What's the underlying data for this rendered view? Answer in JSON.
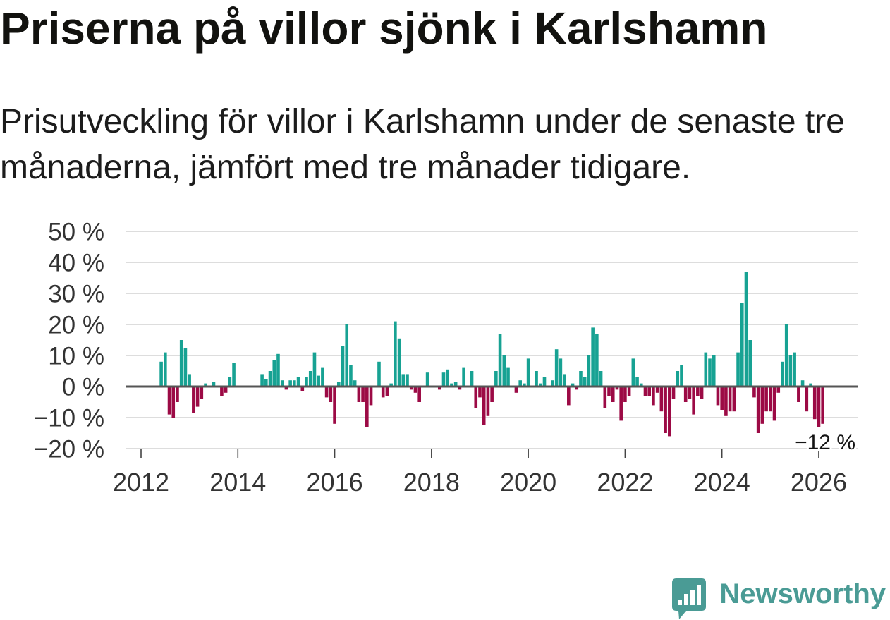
{
  "chart_data": {
    "type": "bar",
    "title": "Priserna på villor sjönk i Karlshamn",
    "subtitle": "Prisutveckling för villor i Karlshamn under de senaste tre månaderna, jämfört med tre månader tidigare.",
    "start_year": 2012,
    "start_month": 6,
    "values": [
      8,
      11,
      -9,
      -10,
      -5,
      15,
      12.5,
      4,
      -8.5,
      -6.5,
      -4,
      1,
      0,
      1.5,
      0,
      -3,
      -2,
      3,
      7.5,
      null,
      null,
      null,
      null,
      null,
      null,
      4,
      2.5,
      5,
      8.5,
      10.5,
      2,
      -1,
      2,
      2,
      3,
      -1.5,
      3,
      5,
      11,
      3.5,
      6,
      -3.5,
      -5,
      -12,
      1.5,
      13,
      20,
      7,
      2,
      -5,
      -5,
      -13,
      -6,
      0,
      8,
      -3.5,
      -3,
      1,
      21,
      15.5,
      4,
      4,
      -1,
      -2,
      -5,
      0,
      4.5,
      0,
      0,
      -1,
      4.5,
      5.5,
      1,
      1.5,
      -1,
      6,
      0,
      5,
      -7,
      -3.5,
      -12.5,
      -9.5,
      -5,
      5,
      17,
      10,
      6,
      0,
      -2,
      2,
      1,
      9,
      0,
      5,
      1,
      3,
      0,
      2,
      12,
      9,
      4,
      -6,
      1,
      -1,
      5,
      3,
      10,
      19,
      17,
      5,
      -7,
      -3,
      -5,
      -1,
      -11,
      -5,
      -3,
      9,
      3,
      1,
      -3,
      -3,
      -6,
      -2,
      -8,
      -15,
      -16,
      -4,
      5,
      7,
      -5,
      -4,
      -9,
      -3,
      -4,
      11,
      9,
      10,
      -6,
      -7.5,
      -9.5,
      -8,
      -8,
      11,
      27,
      37,
      15,
      -3.5,
      -15,
      -12,
      -8,
      -8,
      -11,
      -2,
      8,
      20,
      10,
      11,
      -5,
      2,
      -8,
      1,
      -10.5,
      -13,
      -12
    ],
    "ylim": [
      -20,
      50
    ],
    "yticks": [
      50,
      40,
      30,
      20,
      10,
      0,
      -10,
      -20
    ],
    "ytick_labels": [
      "50 %",
      "40 %",
      "30 %",
      "20 %",
      "10 %",
      "0 %",
      "−10 %",
      "−20 %"
    ],
    "xticks": [
      2012,
      2014,
      2016,
      2018,
      2020,
      2022,
      2024,
      2026
    ],
    "xtick_labels": [
      "2012",
      "2014",
      "2016",
      "2018",
      "2020",
      "2022",
      "2024",
      "2026"
    ],
    "grid": true,
    "annotation": {
      "text": "−12 %",
      "value": -12
    },
    "colors": {
      "positive": "#17a293",
      "negative": "#9c0a45",
      "zero_line": "#555555",
      "grid": "#dddddd",
      "ticks": "#444444"
    }
  },
  "brand": {
    "name": "Newsworthy",
    "icon": "newsworthy-logo-icon",
    "color": "#4a9b95"
  }
}
